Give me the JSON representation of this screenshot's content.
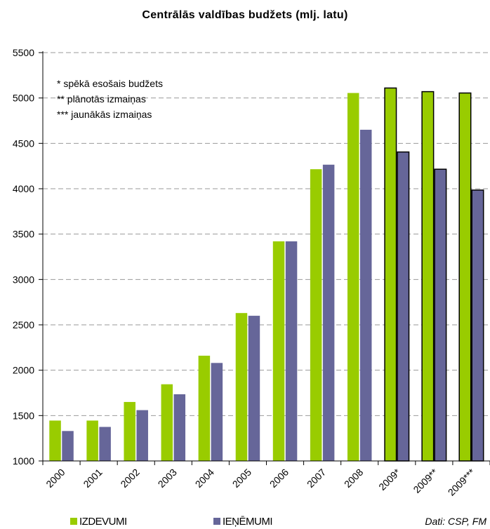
{
  "chart_data": {
    "type": "bar",
    "title": "Centrālās valdības budžets (mlj. latu)",
    "xlabel": "",
    "ylabel": "",
    "ylim": [
      1000,
      5500
    ],
    "y_ticks": [
      1000,
      1500,
      2000,
      2500,
      3000,
      3500,
      4000,
      4500,
      5000,
      5500
    ],
    "grid": true,
    "categories": [
      "2000",
      "2001",
      "2002",
      "2003",
      "2004",
      "2005",
      "2006",
      "2007",
      "2008",
      "2009*",
      "2009**",
      "2009***"
    ],
    "series": [
      {
        "name": "IZDEVUMI",
        "color": "#99cc00",
        "values": [
          1445,
          1445,
          1650,
          1845,
          2160,
          2630,
          3420,
          4215,
          5055,
          5110,
          5070,
          5055
        ]
      },
      {
        "name": "IEŅĒMUMI",
        "color": "#666699",
        "values": [
          1330,
          1375,
          1560,
          1735,
          2080,
          2600,
          3420,
          4265,
          4650,
          4405,
          4215,
          3985
        ]
      }
    ],
    "outlined_categories": [
      "2009*",
      "2009**",
      "2009***"
    ],
    "notes": [
      "* spēkā esošais budžets",
      "** plānotās izmaiņas",
      "*** jaunākās izmaiņas"
    ],
    "legend_position": "bottom",
    "source": "Dati: CSP, FM"
  }
}
